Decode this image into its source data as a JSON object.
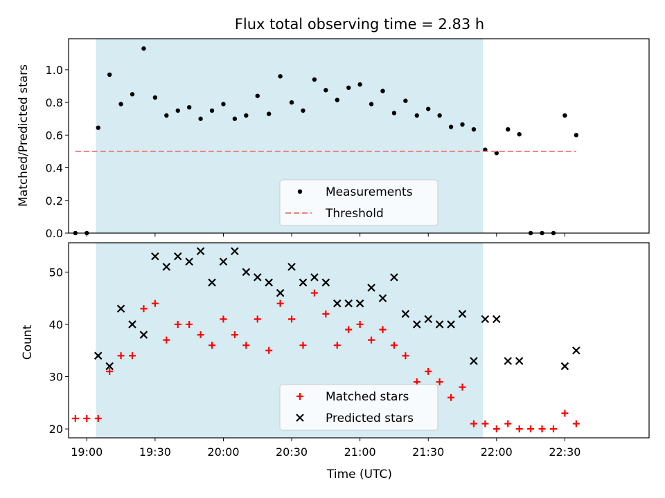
{
  "chart_data": [
    {
      "type": "scatter",
      "title": "Flux total observing time = 2.83 h",
      "xlabel": "",
      "ylabel": "Matched/Predicted stars",
      "xlim": [
        "18:52",
        "23:07"
      ],
      "ylim": [
        0,
        1.19
      ],
      "yticks": [
        "0.0",
        "0.2",
        "0.4",
        "0.6",
        "0.8",
        "1.0"
      ],
      "shaded_region": {
        "x_start": "19:04",
        "x_end": "21:54",
        "color": "#add8e6"
      },
      "series": [
        {
          "name": "Measurements",
          "marker": "dot",
          "color": "#000000",
          "points": [
            [
              "18:55",
              0.0
            ],
            [
              "19:00",
              0.0
            ],
            [
              "19:05",
              0.645
            ],
            [
              "19:10",
              0.97
            ],
            [
              "19:15",
              0.79
            ],
            [
              "19:20",
              0.85
            ],
            [
              "19:25",
              1.13
            ],
            [
              "19:30",
              0.83
            ],
            [
              "19:35",
              0.72
            ],
            [
              "19:40",
              0.75
            ],
            [
              "19:45",
              0.77
            ],
            [
              "19:50",
              0.7
            ],
            [
              "19:55",
              0.75
            ],
            [
              "20:00",
              0.79
            ],
            [
              "20:05",
              0.7
            ],
            [
              "20:10",
              0.72
            ],
            [
              "20:15",
              0.84
            ],
            [
              "20:20",
              0.73
            ],
            [
              "20:25",
              0.96
            ],
            [
              "20:30",
              0.8
            ],
            [
              "20:35",
              0.75
            ],
            [
              "20:40",
              0.94
            ],
            [
              "20:45",
              0.875
            ],
            [
              "20:50",
              0.815
            ],
            [
              "20:55",
              0.89
            ],
            [
              "21:00",
              0.91
            ],
            [
              "21:05",
              0.79
            ],
            [
              "21:10",
              0.87
            ],
            [
              "21:15",
              0.735
            ],
            [
              "21:20",
              0.81
            ],
            [
              "21:25",
              0.72
            ],
            [
              "21:30",
              0.76
            ],
            [
              "21:35",
              0.72
            ],
            [
              "21:40",
              0.65
            ],
            [
              "21:45",
              0.665
            ],
            [
              "21:50",
              0.635
            ],
            [
              "21:55",
              0.51
            ],
            [
              "22:00",
              0.49
            ],
            [
              "22:05",
              0.635
            ],
            [
              "22:10",
              0.605
            ],
            [
              "22:15",
              0.0
            ],
            [
              "22:20",
              0.0
            ],
            [
              "22:25",
              0.0
            ],
            [
              "22:30",
              0.72
            ],
            [
              "22:35",
              0.6
            ]
          ]
        },
        {
          "name": "Threshold",
          "line": "dashed",
          "color": "#f08080",
          "points": [
            [
              "18:55",
              0.5
            ],
            [
              "22:35",
              0.5
            ]
          ]
        }
      ],
      "legend": {
        "position": "lower center",
        "entries": [
          "Measurements",
          "Threshold"
        ]
      }
    },
    {
      "type": "scatter",
      "title": "",
      "xlabel": "Time (UTC)",
      "ylabel": "Count",
      "xlim": [
        "18:52",
        "23:07"
      ],
      "ylim": [
        18.3,
        55.6
      ],
      "xticks": [
        "19:00",
        "19:30",
        "20:00",
        "20:30",
        "21:00",
        "21:30",
        "22:00",
        "22:30"
      ],
      "yticks": [
        "20",
        "30",
        "40",
        "50"
      ],
      "shaded_region": {
        "x_start": "19:04",
        "x_end": "21:54",
        "color": "#add8e6"
      },
      "series": [
        {
          "name": "Matched stars",
          "marker": "plus",
          "color": "#ff0000",
          "points": [
            [
              "18:55",
              22
            ],
            [
              "19:00",
              22
            ],
            [
              "19:05",
              22
            ],
            [
              "19:10",
              31
            ],
            [
              "19:15",
              34
            ],
            [
              "19:20",
              34
            ],
            [
              "19:25",
              43
            ],
            [
              "19:30",
              44
            ],
            [
              "19:35",
              37
            ],
            [
              "19:40",
              40
            ],
            [
              "19:45",
              40
            ],
            [
              "19:50",
              38
            ],
            [
              "19:55",
              36
            ],
            [
              "20:00",
              41
            ],
            [
              "20:05",
              38
            ],
            [
              "20:10",
              36
            ],
            [
              "20:15",
              41
            ],
            [
              "20:20",
              35
            ],
            [
              "20:25",
              44
            ],
            [
              "20:30",
              41
            ],
            [
              "20:35",
              36
            ],
            [
              "20:40",
              46
            ],
            [
              "20:45",
              42
            ],
            [
              "20:50",
              36
            ],
            [
              "20:55",
              39
            ],
            [
              "21:00",
              40
            ],
            [
              "21:05",
              37
            ],
            [
              "21:10",
              39
            ],
            [
              "21:15",
              36
            ],
            [
              "21:20",
              34
            ],
            [
              "21:25",
              29
            ],
            [
              "21:30",
              31
            ],
            [
              "21:35",
              29
            ],
            [
              "21:40",
              26
            ],
            [
              "21:45",
              28
            ],
            [
              "21:50",
              21
            ],
            [
              "21:55",
              21
            ],
            [
              "22:00",
              20
            ],
            [
              "22:05",
              21
            ],
            [
              "22:10",
              20
            ],
            [
              "22:15",
              20
            ],
            [
              "22:20",
              20
            ],
            [
              "22:25",
              20
            ],
            [
              "22:30",
              23
            ],
            [
              "22:35",
              21
            ]
          ]
        },
        {
          "name": "Predicted stars",
          "marker": "x",
          "color": "#000000",
          "points": [
            [
              "19:05",
              34
            ],
            [
              "19:10",
              32
            ],
            [
              "19:15",
              43
            ],
            [
              "19:20",
              40
            ],
            [
              "19:25",
              38
            ],
            [
              "19:30",
              53
            ],
            [
              "19:35",
              51
            ],
            [
              "19:40",
              53
            ],
            [
              "19:45",
              52
            ],
            [
              "19:50",
              54
            ],
            [
              "19:55",
              48
            ],
            [
              "20:00",
              52
            ],
            [
              "20:05",
              54
            ],
            [
              "20:10",
              50
            ],
            [
              "20:15",
              49
            ],
            [
              "20:20",
              48
            ],
            [
              "20:25",
              46
            ],
            [
              "20:30",
              51
            ],
            [
              "20:35",
              48
            ],
            [
              "20:40",
              49
            ],
            [
              "20:45",
              48
            ],
            [
              "20:50",
              44
            ],
            [
              "20:55",
              44
            ],
            [
              "21:00",
              44
            ],
            [
              "21:05",
              47
            ],
            [
              "21:10",
              45
            ],
            [
              "21:15",
              49
            ],
            [
              "21:20",
              42
            ],
            [
              "21:25",
              40
            ],
            [
              "21:30",
              41
            ],
            [
              "21:35",
              40
            ],
            [
              "21:40",
              40
            ],
            [
              "21:45",
              42
            ],
            [
              "21:50",
              33
            ],
            [
              "21:55",
              41
            ],
            [
              "22:00",
              41
            ],
            [
              "22:05",
              33
            ],
            [
              "22:10",
              33
            ],
            [
              "22:30",
              32
            ],
            [
              "22:35",
              35
            ]
          ]
        }
      ],
      "legend": {
        "position": "lower center",
        "entries": [
          "Matched stars",
          "Predicted stars"
        ]
      }
    }
  ]
}
